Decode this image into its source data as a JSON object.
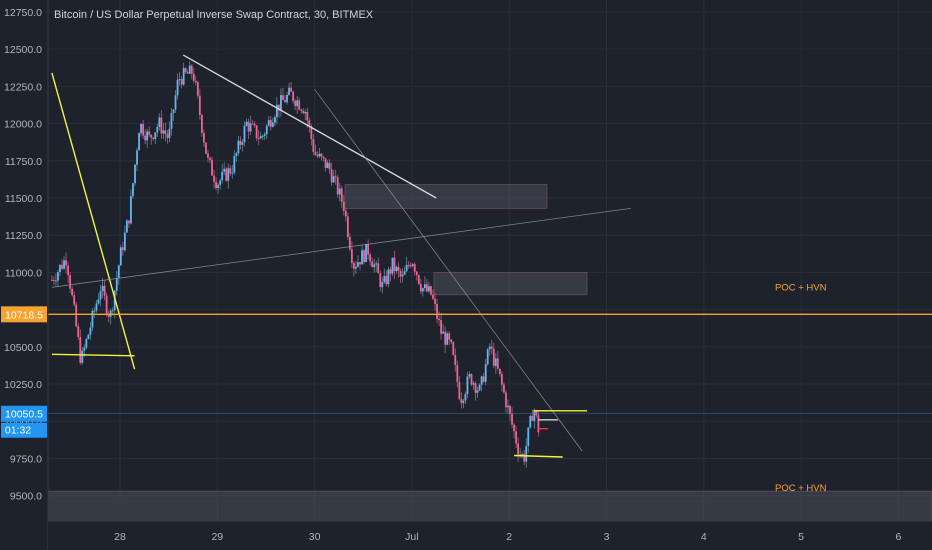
{
  "title": "Bitcoin / US Dollar Perpetual Inverse Swap Contract, 30, BITMEX",
  "colors": {
    "background": "#1e222d",
    "up_candle": "#64b5f6",
    "down_candle": "#f06292",
    "poc_line": "#f7a330",
    "trend_yellow": "#f5f53b",
    "trend_white": "#d1d4dc",
    "zone_fill": "#4a4e5a"
  },
  "price_tags": {
    "poc": "10718.5",
    "last": "10050.5",
    "countdown": "01:32"
  },
  "annotations": [
    "POC + HVN",
    "POC + HVN"
  ],
  "chart_data": {
    "type": "candlestick",
    "y_ticks": [
      "12750.0",
      "12500.0",
      "12250.0",
      "12000.0",
      "11750.0",
      "11500.0",
      "11250.0",
      "11000.0",
      "10750.0",
      "10500.0",
      "10250.0",
      "10000.0",
      "9750.0",
      "9500.0"
    ],
    "x_ticks": [
      "28",
      "29",
      "30",
      "Jul",
      "2",
      "3",
      "4",
      "5",
      "6"
    ],
    "ylim": [
      9330,
      12830
    ],
    "poc_level": 10718.5,
    "last_price": 10050.5,
    "zones": [
      {
        "from": 11430,
        "to": 11590
      },
      {
        "from": 10850,
        "to": 11000
      },
      {
        "from": 9330,
        "to": 9530
      }
    ],
    "close_path": [
      [
        27.3,
        10950
      ],
      [
        27.45,
        11100
      ],
      [
        27.6,
        10400
      ],
      [
        27.7,
        10650
      ],
      [
        27.8,
        10900
      ],
      [
        27.9,
        10700
      ],
      [
        28.0,
        11100
      ],
      [
        28.1,
        11400
      ],
      [
        28.2,
        12000
      ],
      [
        28.3,
        11900
      ],
      [
        28.4,
        12000
      ],
      [
        28.5,
        11900
      ],
      [
        28.6,
        12300
      ],
      [
        28.75,
        12350
      ],
      [
        28.9,
        11750
      ],
      [
        29.0,
        11600
      ],
      [
        29.15,
        11700
      ],
      [
        29.3,
        12000
      ],
      [
        29.45,
        11900
      ],
      [
        29.6,
        12100
      ],
      [
        29.75,
        12200
      ],
      [
        29.9,
        12100
      ],
      [
        30.0,
        11800
      ],
      [
        30.15,
        11700
      ],
      [
        30.3,
        11450
      ],
      [
        30.4,
        11050
      ],
      [
        30.55,
        11150
      ],
      [
        30.7,
        10900
      ],
      [
        30.8,
        11050
      ],
      [
        30.9,
        10950
      ],
      [
        31.0,
        11100
      ],
      [
        31.1,
        10900
      ],
      [
        31.2,
        10850
      ],
      [
        31.3,
        10600
      ],
      [
        31.4,
        10500
      ],
      [
        31.5,
        10150
      ],
      [
        31.6,
        10300
      ],
      [
        31.7,
        10200
      ],
      [
        31.8,
        10500
      ],
      [
        31.9,
        10300
      ],
      [
        32.0,
        10050
      ],
      [
        32.1,
        9800
      ],
      [
        32.15,
        9750
      ],
      [
        32.25,
        10100
      ],
      [
        32.3,
        9950
      ]
    ],
    "trendlines": [
      {
        "color": "yellow",
        "points": [
          [
            27.3,
            12340
          ],
          [
            28.15,
            10350
          ]
        ]
      },
      {
        "color": "yellow",
        "points": [
          [
            27.3,
            10450
          ],
          [
            28.15,
            10440
          ]
        ]
      },
      {
        "color": "white",
        "points": [
          [
            28.65,
            12460
          ],
          [
            31.25,
            11500
          ]
        ]
      },
      {
        "color": "gray",
        "points": [
          [
            27.3,
            10900
          ],
          [
            33.25,
            11430
          ]
        ]
      },
      {
        "color": "gray",
        "points": [
          [
            30.0,
            12230
          ],
          [
            32.75,
            9800
          ]
        ]
      },
      {
        "color": "yellow",
        "points": [
          [
            32.25,
            10070
          ],
          [
            32.8,
            10070
          ]
        ]
      },
      {
        "color": "yellow",
        "points": [
          [
            32.05,
            9770
          ],
          [
            32.55,
            9760
          ]
        ]
      },
      {
        "color": "white",
        "points": [
          [
            32.3,
            10010
          ],
          [
            32.5,
            10010
          ]
        ]
      },
      {
        "color": "red",
        "points": [
          [
            32.3,
            9950
          ],
          [
            32.4,
            9950
          ]
        ]
      }
    ]
  }
}
